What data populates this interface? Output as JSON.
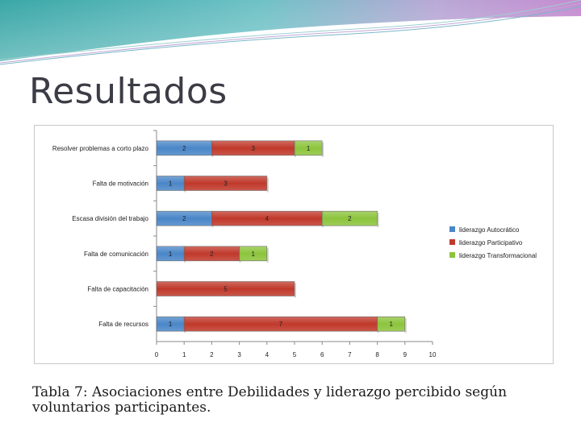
{
  "slide": {
    "title": "Resultados",
    "caption": "Tabla 7: Asociaciones entre Debilidades y liderazgo percibido según voluntarios participantes."
  },
  "colors": {
    "series_blue": "#4a86c8",
    "series_red": "#c0392b",
    "series_green": "#8cc43c",
    "banner_teal": "#4bb3b0",
    "banner_purple": "#b07cc6"
  },
  "chart_data": {
    "type": "bar",
    "orientation": "horizontal",
    "stacked": true,
    "categories": [
      "Resolver problemas a corto plazo",
      "Falta de motivación",
      "Escasa división del trabajo",
      "Falta de comunicación",
      "Falta de capacitación",
      "Falta de recursos"
    ],
    "series": [
      {
        "name": "liderazgo Autocrático",
        "values": [
          2,
          1,
          2,
          1,
          0,
          1
        ]
      },
      {
        "name": "liderazgo Participativo",
        "values": [
          3,
          3,
          4,
          2,
          5,
          7
        ]
      },
      {
        "name": "liderazgo Transformacional",
        "values": [
          1,
          0,
          2,
          1,
          0,
          1
        ]
      }
    ],
    "xlim": [
      0,
      10
    ],
    "xticks": [
      "0",
      "1",
      "2",
      "3",
      "4",
      "5",
      "6",
      "7",
      "8",
      "9",
      "10"
    ],
    "legend_position": "right",
    "grid": false
  }
}
